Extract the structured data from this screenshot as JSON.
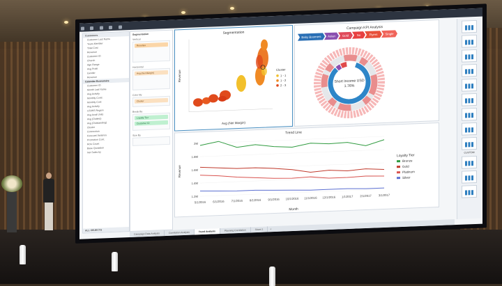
{
  "fields": {
    "header": "Customers",
    "items": [
      "Customer Last Name",
      "Years Member",
      "Total Cost",
      "Revenue",
      "Customer ID",
      "Church",
      "Age Range",
      "Avg Profit",
      "Gender",
      "Revenue"
    ],
    "group": "Calendar Economics",
    "items2": [
      "Customer ID",
      "Month Last Name",
      "Avg Activity",
      "Monthly Contr.",
      "Monthly Cost",
      "Avg Activity",
      "US/WS Region",
      "Avg Avail Units",
      "Avg (Outlets)",
      "Avg (Outstanding)",
      "Cluster",
      "Connection",
      "Forecast Variance",
      "Promotion Cont.",
      "Row Count",
      "Base Quotation",
      "Net Sales by"
    ],
    "footer": "ALL OBJECTS"
  },
  "shelf": {
    "title": "Segmentation",
    "vertical_label": "Vertical",
    "vertical_pill": "Revenue",
    "horizontal_label": "Horizontal",
    "horizontal_pill": "Avg (Net Margin)",
    "color_label": "Color By",
    "color_pill": "Cluster",
    "break_label": "Break By",
    "break_pills": [
      "Loyalty Tier",
      "Customer ID"
    ],
    "size_label": "Size By"
  },
  "segmentation": {
    "title": "Segmentation",
    "xlabel": "Avg (Net Margin)",
    "ylabel": "Revenue",
    "legend_title": "Cluster",
    "legend": [
      {
        "label": "1 - 1",
        "color": "#f2c02c"
      },
      {
        "label": "1 - 2",
        "color": "#f08a24"
      },
      {
        "label": "2 - 3",
        "color": "#e04a1c"
      }
    ]
  },
  "kpi": {
    "title": "Campaign KPI Analysis",
    "segments": [
      {
        "label": "Baby Boomers",
        "color": "#2a6fb5"
      },
      {
        "label": "Asian",
        "color": "#8a4fb0"
      },
      {
        "label": "Gold",
        "color": "#e04a5a"
      },
      {
        "label": "No",
        "color": "#e84040"
      },
      {
        "label": "Flyers",
        "color": "#e8503a"
      },
      {
        "label": "Single",
        "color": "#f0645a"
      }
    ],
    "center_label": "Short Income USD",
    "center_value": "1.76%"
  },
  "trend": {
    "title": "Trend Line",
    "xlabel": "Month",
    "ylabel": "Revenue",
    "legend_title": "Loyalty Tier",
    "y_ticks": [
      "2M",
      "1.8M",
      "1.6M",
      "1.4M",
      "1.2M"
    ],
    "x_ticks": [
      "5/1/2016",
      "6/1/2016",
      "7/1/2016",
      "8/1/2016",
      "9/1/2016",
      "10/1/2016",
      "11/1/2016",
      "12/1/2016",
      "1/1/2017",
      "2/1/2017",
      "3/1/2017"
    ],
    "series": [
      {
        "name": "Bronze",
        "color": "#2e9a3e",
        "values": [
          1.97,
          2.02,
          1.92,
          1.95,
          1.91,
          1.89,
          1.94,
          1.92,
          1.93,
          1.87,
          1.95
        ]
      },
      {
        "name": "Gold",
        "color": "#c0392b",
        "values": [
          1.64,
          1.62,
          1.6,
          1.6,
          1.58,
          1.55,
          1.5,
          1.52,
          1.5,
          1.52,
          1.5
        ]
      },
      {
        "name": "Platinum",
        "color": "#d9534f",
        "values": [
          1.52,
          1.5,
          1.47,
          1.45,
          1.43,
          1.42,
          1.43,
          1.4,
          1.4,
          1.41,
          1.4
        ]
      },
      {
        "name": "Silver",
        "color": "#5b6fd1",
        "values": [
          1.28,
          1.27,
          1.26,
          1.26,
          1.25,
          1.24,
          1.23,
          1.23,
          1.23,
          1.22,
          1.22
        ]
      }
    ]
  },
  "tabs": [
    "Campaign Data Analysis",
    "Correlation Analysis",
    "Trend Analysis",
    "Planning Correlation",
    "Sheet 1"
  ],
  "active_tab": "Trend Analysis",
  "charts_panel": {
    "custom_label": "CUSTOM"
  }
}
